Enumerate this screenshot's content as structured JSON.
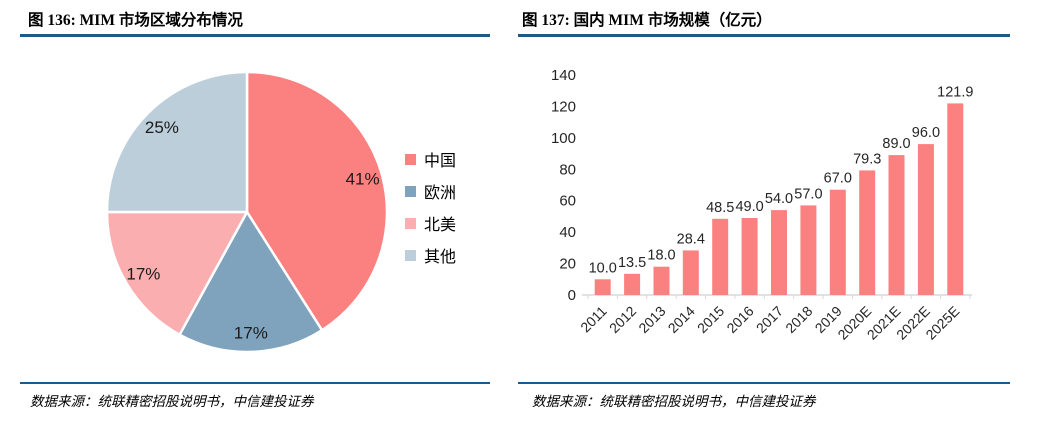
{
  "accent": {
    "rule_color": "#1C5A8A",
    "bar_color": "#FB8181",
    "axis_color": "#D9D9D9"
  },
  "left_panel": {
    "title": "图 136: MIM 市场区域分布情况",
    "source": "数据来源：统联精密招股说明书，中信建投证券"
  },
  "right_panel": {
    "title": "图 137: 国内 MIM 市场规模（亿元）",
    "source": "数据来源：统联精密招股说明书，中信建投证券"
  },
  "chart_data": [
    {
      "type": "pie",
      "title": "MIM 市场区域分布情况",
      "labels": [
        "中国",
        "欧洲",
        "北美",
        "其他"
      ],
      "values": [
        41,
        17,
        17,
        25
      ],
      "value_labels": [
        "41%",
        "17%",
        "17%",
        "25%"
      ],
      "colors": [
        "#FB8080",
        "#80A3BD",
        "#FBAEB0",
        "#BDCEDB"
      ],
      "start_angle_deg": 0,
      "direction": "clockwise",
      "legend_position": "right"
    },
    {
      "type": "bar",
      "title": "国内 MIM 市场规模（亿元）",
      "categories": [
        "2011",
        "2012",
        "2013",
        "2014",
        "2015",
        "2016",
        "2017",
        "2018",
        "2019",
        "2020E",
        "2021E",
        "2022E",
        "2025E"
      ],
      "values": [
        10.0,
        13.5,
        18.0,
        28.4,
        48.5,
        49.0,
        54.0,
        57.0,
        67.0,
        79.3,
        89.0,
        96.0,
        121.9
      ],
      "value_labels": [
        "10.0",
        "13.5",
        "18.0",
        "28.4",
        "48.5",
        "49.0",
        "54.0",
        "57.0",
        "67.0",
        "79.3",
        "89.0",
        "96.0",
        "121.9"
      ],
      "ylim": [
        0,
        140
      ],
      "yticks": [
        0,
        20,
        40,
        60,
        80,
        100,
        120,
        140
      ],
      "grid": false,
      "bar_color": "#FB8181",
      "xtick_rotation_deg": -45
    }
  ]
}
